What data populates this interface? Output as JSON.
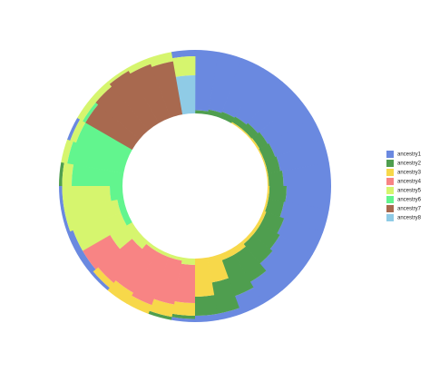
{
  "chart_data": {
    "type": "radial-stacked-bar",
    "series": [
      {
        "name": "ancestry1",
        "color": "#6a89e0",
        "values": [
          0.95,
          0.92,
          0.9,
          0.88,
          0.85,
          0.82,
          0.8,
          0.78,
          0.75,
          0.7,
          0.72,
          0.65,
          0.6,
          0.55,
          0.4,
          0.3,
          0.1,
          0.1,
          0.05,
          0,
          0,
          0,
          0.05,
          0.1,
          0.1,
          0.05,
          0.05,
          0,
          0,
          0.05,
          0,
          0,
          0,
          0,
          0,
          0.1
        ]
      },
      {
        "name": "ancestry2",
        "color": "#4f9e4f",
        "values": [
          0.05,
          0.08,
          0.1,
          0.1,
          0.13,
          0.15,
          0.18,
          0.2,
          0.23,
          0.27,
          0.25,
          0.3,
          0.35,
          0.4,
          0.5,
          0.6,
          0.5,
          0.3,
          0.05,
          0.05,
          0,
          0,
          0,
          0,
          0,
          0,
          0,
          0.05,
          0,
          0,
          0,
          0,
          0,
          0,
          0,
          0
        ]
      },
      {
        "name": "ancestry3",
        "color": "#f7d84a",
        "values": [
          0,
          0,
          0,
          0.02,
          0.02,
          0.03,
          0.02,
          0.02,
          0.02,
          0.03,
          0.03,
          0.05,
          0.05,
          0.05,
          0.1,
          0.1,
          0.4,
          0.6,
          0.2,
          0.2,
          0.15,
          0.2,
          0.1,
          0,
          0,
          0,
          0,
          0,
          0,
          0,
          0,
          0,
          0,
          0,
          0,
          0
        ]
      },
      {
        "name": "ancestry4",
        "color": "#f88484",
        "values": [
          0,
          0,
          0,
          0,
          0,
          0,
          0,
          0,
          0,
          0,
          0,
          0,
          0,
          0,
          0,
          0,
          0,
          0,
          0.6,
          0.7,
          0.8,
          0.75,
          0.7,
          0.5,
          0,
          0,
          0,
          0,
          0,
          0,
          0,
          0,
          0,
          0,
          0,
          0
        ]
      },
      {
        "name": "ancestry5",
        "color": "#d6f56e",
        "values": [
          0,
          0,
          0,
          0,
          0,
          0,
          0,
          0,
          0,
          0,
          0,
          0,
          0,
          0,
          0,
          0,
          0,
          0,
          0.1,
          0.05,
          0.05,
          0.05,
          0.15,
          0.4,
          0.8,
          0.85,
          0.75,
          0.15,
          0.1,
          0.1,
          0.1,
          0.1,
          0.05,
          0.1,
          0.15,
          0.3
        ]
      },
      {
        "name": "ancestry6",
        "color": "#62f58e",
        "values": [
          0,
          0,
          0,
          0,
          0,
          0,
          0,
          0,
          0,
          0,
          0,
          0,
          0,
          0,
          0,
          0,
          0,
          0,
          0,
          0,
          0,
          0,
          0,
          0,
          0.1,
          0.1,
          0.2,
          0.8,
          0.9,
          0.85,
          0.05,
          0,
          0,
          0,
          0,
          0
        ]
      },
      {
        "name": "ancestry7",
        "color": "#a8694f",
        "values": [
          0,
          0,
          0,
          0,
          0,
          0,
          0,
          0,
          0,
          0,
          0,
          0,
          0,
          0,
          0,
          0,
          0,
          0,
          0,
          0,
          0,
          0,
          0,
          0,
          0,
          0,
          0,
          0,
          0,
          0,
          0.85,
          0.9,
          0.95,
          0.9,
          0.85,
          0
        ]
      },
      {
        "name": "ancestry8",
        "color": "#8fcbe6",
        "values": [
          0,
          0,
          0,
          0,
          0,
          0,
          0,
          0,
          0,
          0,
          0,
          0,
          0,
          0,
          0,
          0,
          0,
          0,
          0,
          0,
          0,
          0,
          0,
          0,
          0,
          0,
          0,
          0,
          0,
          0,
          0,
          0,
          0,
          0,
          0,
          0.6
        ]
      }
    ]
  }
}
